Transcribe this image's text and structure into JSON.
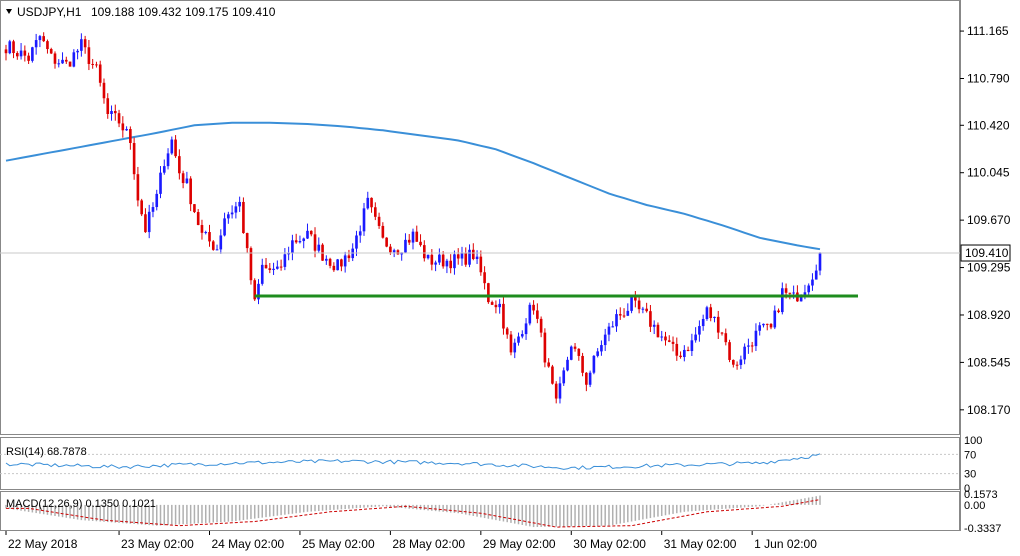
{
  "header": {
    "symbol": "USDJPY,H1",
    "open": "109.188",
    "high": "109.432",
    "low": "109.175",
    "close": "109.410"
  },
  "price_axis": {
    "labels": [
      "111.165",
      "110.790",
      "110.420",
      "110.045",
      "109.670",
      "109.295",
      "108.920",
      "108.545",
      "108.170"
    ],
    "current_label": "109.410"
  },
  "time_axis": {
    "labels": [
      "22 May 2018",
      "23 May 02:00",
      "24 May 02:00",
      "25 May 02:00",
      "28 May 02:00",
      "29 May 02:00",
      "30 May 02:00",
      "31 May 02:00",
      "1 Jun 02:00"
    ]
  },
  "rsi_panel": {
    "label": "RSI(14) 68.7878",
    "levels": [
      "100",
      "70",
      "30",
      "0"
    ],
    "level_values": [
      100,
      70,
      30,
      0
    ]
  },
  "macd_panel": {
    "label": "MACD(12,26,9) 0.1350 0.1021",
    "levels": [
      "0.1573",
      "0.00",
      "-0.3337"
    ],
    "level_values": [
      0.1573,
      0,
      -0.3337
    ]
  },
  "colors": {
    "bull": "#1a1aff",
    "bear": "#dd0000",
    "ma": "#3a8fd8",
    "support": "#1e8c1e",
    "rsi": "#3a8fd8",
    "macd_hist": "#b0b0b0",
    "macd_signal": "#cc0000",
    "grid_line": "#c8c8c8"
  },
  "chart_data": {
    "type": "candlestick",
    "symbol": "USDJPY",
    "timeframe": "H1",
    "ylim": [
      108.05,
      111.3
    ],
    "x_range_hours": [
      0,
      250
    ],
    "tick_hours": [
      0,
      30,
      54,
      78,
      102,
      126,
      150,
      174,
      198
    ],
    "current_price": 109.41,
    "support_level": 109.07,
    "support_span_hours": [
      66,
      212
    ],
    "anchor_prices": [
      [
        0,
        111.05
      ],
      [
        6,
        110.95
      ],
      [
        9,
        111.12
      ],
      [
        12,
        110.95
      ],
      [
        16,
        110.9
      ],
      [
        20,
        111.05
      ],
      [
        24,
        110.85
      ],
      [
        27,
        110.5
      ],
      [
        30,
        110.45
      ],
      [
        33,
        110.3
      ],
      [
        35,
        109.85
      ],
      [
        37,
        109.6
      ],
      [
        40,
        109.85
      ],
      [
        42,
        110.15
      ],
      [
        44,
        110.3
      ],
      [
        46,
        110.05
      ],
      [
        48,
        109.95
      ],
      [
        52,
        109.55
      ],
      [
        56,
        109.45
      ],
      [
        58,
        109.7
      ],
      [
        62,
        109.8
      ],
      [
        66,
        109.0
      ],
      [
        68,
        109.3
      ],
      [
        72,
        109.25
      ],
      [
        76,
        109.5
      ],
      [
        80,
        109.55
      ],
      [
        84,
        109.4
      ],
      [
        88,
        109.3
      ],
      [
        92,
        109.45
      ],
      [
        96,
        109.8
      ],
      [
        100,
        109.5
      ],
      [
        104,
        109.45
      ],
      [
        108,
        109.55
      ],
      [
        112,
        109.35
      ],
      [
        116,
        109.35
      ],
      [
        120,
        109.35
      ],
      [
        124,
        109.4
      ],
      [
        126,
        109.25
      ],
      [
        128,
        109.05
      ],
      [
        131,
        109.0
      ],
      [
        134,
        108.6
      ],
      [
        138,
        108.9
      ],
      [
        140,
        109.0
      ],
      [
        143,
        108.6
      ],
      [
        146,
        108.2
      ],
      [
        150,
        108.7
      ],
      [
        154,
        108.4
      ],
      [
        158,
        108.7
      ],
      [
        162,
        108.9
      ],
      [
        166,
        109.0
      ],
      [
        170,
        108.9
      ],
      [
        174,
        108.75
      ],
      [
        178,
        108.6
      ],
      [
        182,
        108.7
      ],
      [
        186,
        108.95
      ],
      [
        190,
        108.8
      ],
      [
        193,
        108.5
      ],
      [
        196,
        108.65
      ],
      [
        200,
        108.8
      ],
      [
        203,
        108.8
      ],
      [
        206,
        109.1
      ],
      [
        209,
        109.05
      ],
      [
        212,
        109.15
      ],
      [
        214,
        109.25
      ],
      [
        216,
        109.41
      ]
    ],
    "ma_200": [
      [
        0,
        110.14
      ],
      [
        20,
        110.25
      ],
      [
        40,
        110.36
      ],
      [
        50,
        110.42
      ],
      [
        60,
        110.44
      ],
      [
        70,
        110.44
      ],
      [
        80,
        110.43
      ],
      [
        90,
        110.41
      ],
      [
        100,
        110.38
      ],
      [
        110,
        110.34
      ],
      [
        120,
        110.3
      ],
      [
        130,
        110.23
      ],
      [
        140,
        110.12
      ],
      [
        150,
        110.0
      ],
      [
        160,
        109.88
      ],
      [
        170,
        109.79
      ],
      [
        180,
        109.72
      ],
      [
        190,
        109.63
      ],
      [
        200,
        109.53
      ],
      [
        210,
        109.47
      ],
      [
        216,
        109.44
      ]
    ],
    "rsi_anchors": [
      [
        0,
        50
      ],
      [
        30,
        44
      ],
      [
        60,
        52
      ],
      [
        90,
        56
      ],
      [
        120,
        52
      ],
      [
        150,
        42
      ],
      [
        180,
        48
      ],
      [
        200,
        52
      ],
      [
        216,
        68.8
      ]
    ],
    "macd_anchors": [
      [
        0,
        -0.05
      ],
      [
        20,
        -0.22
      ],
      [
        40,
        -0.3
      ],
      [
        60,
        -0.24
      ],
      [
        80,
        -0.1
      ],
      [
        100,
        -0.02
      ],
      [
        120,
        -0.12
      ],
      [
        140,
        -0.32
      ],
      [
        160,
        -0.3
      ],
      [
        180,
        -0.1
      ],
      [
        200,
        -0.02
      ],
      [
        216,
        0.135
      ]
    ]
  }
}
